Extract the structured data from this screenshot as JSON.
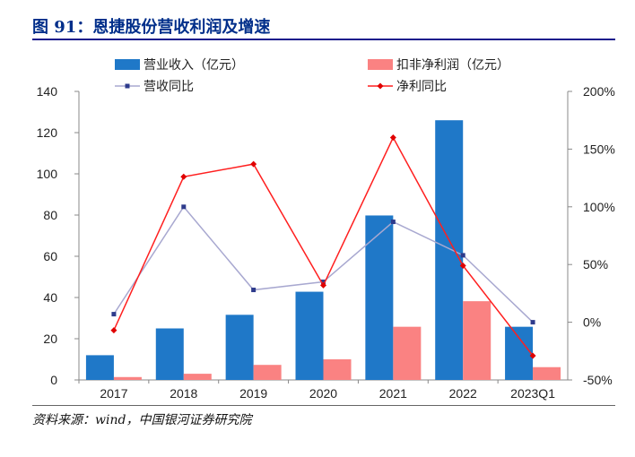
{
  "figure_title": "图 91：恩捷股份营收利润及增速",
  "source_note": "资料来源：wind，中国银河证券研究院",
  "chart_data": {
    "type": "bar",
    "categories": [
      "2017",
      "2018",
      "2019",
      "2020",
      "2021",
      "2022",
      "2023Q1"
    ],
    "series": [
      {
        "name": "营业收入（亿元）",
        "type": "bar",
        "axis": "left",
        "color": "#1f78c8",
        "values": [
          12.0,
          25.0,
          31.6,
          42.8,
          79.8,
          126.0,
          25.8
        ]
      },
      {
        "name": "扣非净利润（亿元）",
        "type": "bar",
        "axis": "left",
        "color": "#fa8282",
        "values": [
          1.4,
          3.0,
          7.3,
          10.0,
          25.8,
          38.2,
          6.2
        ]
      },
      {
        "name": "营收同比",
        "type": "line",
        "axis": "right",
        "color": "#a8a8d0",
        "marker": "square",
        "values": [
          7,
          100,
          28,
          35,
          87,
          58,
          0
        ]
      },
      {
        "name": "净利同比",
        "type": "line",
        "axis": "right",
        "color": "#ff1f1f",
        "marker": "diamond",
        "values": [
          -7,
          126,
          137,
          32,
          160,
          49,
          -29
        ]
      }
    ],
    "y_left": {
      "min": 0,
      "max": 140,
      "ticks": [
        "0",
        "20",
        "40",
        "60",
        "80",
        "100",
        "120",
        "140"
      ]
    },
    "y_right": {
      "min": -50,
      "max": 200,
      "ticks": [
        "-50%",
        "0%",
        "50%",
        "100%",
        "150%",
        "200%"
      ]
    },
    "legend_placement": "top",
    "grid": false
  }
}
